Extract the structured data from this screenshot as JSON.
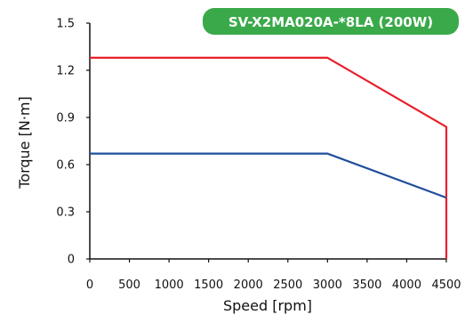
{
  "chart_data": {
    "type": "line",
    "title": "SV-X2MA020A-*8LA (200W)",
    "xlabel": "Speed [rpm]",
    "ylabel": "Torque [N·m]",
    "xlim": [
      0,
      4500
    ],
    "ylim": [
      0,
      1.5
    ],
    "x_ticks": [
      0,
      500,
      1000,
      1500,
      2000,
      2500,
      3000,
      3500,
      4000,
      4500
    ],
    "y_ticks": [
      0,
      0.3,
      0.6,
      0.9,
      1.2,
      1.5
    ],
    "y_tick_labels": [
      "0",
      "0.3",
      "0.6",
      "0.9",
      "1.2",
      "1.5"
    ],
    "grid": false,
    "series": [
      {
        "color": "#e8202a",
        "points": [
          [
            0,
            1.28
          ],
          [
            3000,
            1.28
          ],
          [
            4500,
            0.84
          ],
          [
            4500,
            0
          ]
        ]
      },
      {
        "color": "#1f4e9c",
        "points": [
          [
            0,
            0.67
          ],
          [
            3000,
            0.67
          ],
          [
            4500,
            0.39
          ]
        ]
      }
    ],
    "title_badge_color": "#3aa94a",
    "axis_color": "#111111"
  }
}
